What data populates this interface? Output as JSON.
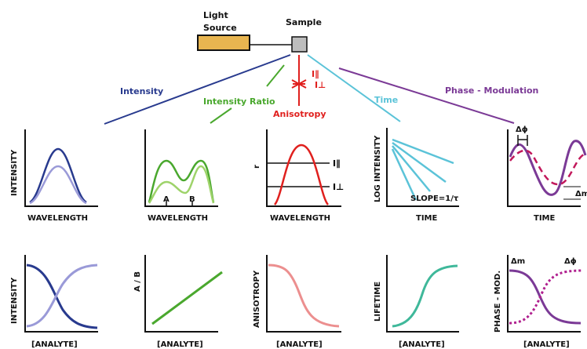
{
  "source": {
    "label_line1": "Light",
    "label_line2": "Source",
    "color": "#e8b550"
  },
  "sample": {
    "label": "Sample",
    "color": "#bdbdbd"
  },
  "techniques": [
    {
      "label": "Intensity",
      "color": "#283a8e"
    },
    {
      "label": "Intensity Ratio",
      "color": "#4aa82e"
    },
    {
      "label": "Anisotropy",
      "color": "#e0201e"
    },
    {
      "label": "Time",
      "color": "#5bc3d8"
    },
    {
      "label": "Phase - Modulation",
      "color": "#7b3a96"
    }
  ],
  "polarizer": {
    "par": "I∥",
    "perp": "I⊥"
  },
  "top_plots": {
    "intensity": {
      "ylabel": "INTENSITY",
      "xlabel": "WAVELENGTH"
    },
    "ratio": {
      "xlabel": "WAVELENGTH",
      "peak_a": "A",
      "peak_b": "B"
    },
    "anisotropy": {
      "ylabel": "r",
      "xlabel": "WAVELENGTH",
      "line_par": "I∥",
      "line_perp": "I⊥"
    },
    "time": {
      "ylabel": "LOG INTENSITY",
      "xlabel": "TIME",
      "slope": "SLOPE=1/τ"
    },
    "phase": {
      "xlabel": "TIME",
      "phase_label": "Δϕ",
      "mod_label": "Δm"
    }
  },
  "bottom_plots": {
    "intensity": {
      "ylabel": "INTENSITY",
      "xlabel": "[ANALYTE]"
    },
    "ratio": {
      "ylabel": "A / B",
      "xlabel": "[ANALYTE]"
    },
    "anisotropy": {
      "ylabel": "ANISOTROPY",
      "xlabel": "[ANALYTE]"
    },
    "lifetime": {
      "ylabel": "LIFETIME",
      "xlabel": "[ANALYTE]"
    },
    "phase": {
      "ylabel": "PHASE - MOD.",
      "xlabel": "[ANALYTE]",
      "mod_label": "Δm",
      "phase_label": "Δϕ"
    }
  }
}
